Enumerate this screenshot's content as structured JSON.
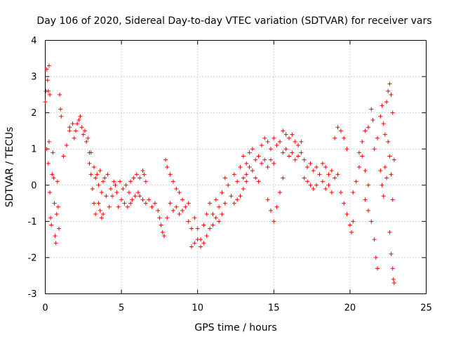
{
  "chart_data": {
    "type": "scatter",
    "title": "Day 106 of 2020, Sidereal Day-to-day VTEC variation (SDTVAR) for receiver vars",
    "xlabel": "GPS time / hours",
    "ylabel": "SDTVAR / TECUs",
    "xlim": [
      0,
      25
    ],
    "ylim": [
      -3,
      4
    ],
    "xticks": [
      "0",
      "5",
      "10",
      "15",
      "20",
      "25"
    ],
    "yticks": [
      "-3",
      "-2",
      "-1",
      "0",
      "1",
      "2",
      "3",
      "4"
    ],
    "grid": true,
    "marker": "+",
    "color": "#ff0000",
    "series": [
      {
        "name": "SDTVAR",
        "points": [
          [
            0.0,
            2.3
          ],
          [
            0.05,
            2.6
          ],
          [
            0.1,
            3.2
          ],
          [
            0.15,
            2.9
          ],
          [
            0.2,
            2.6
          ],
          [
            0.25,
            3.3
          ],
          [
            0.3,
            2.5
          ],
          [
            0.1,
            1.0
          ],
          [
            0.2,
            0.6
          ],
          [
            0.25,
            1.2
          ],
          [
            0.3,
            -0.2
          ],
          [
            0.35,
            -0.9
          ],
          [
            0.4,
            -1.1
          ],
          [
            0.45,
            0.3
          ],
          [
            0.5,
            0.9
          ],
          [
            0.55,
            0.2
          ],
          [
            0.6,
            -0.5
          ],
          [
            0.65,
            -1.4
          ],
          [
            0.7,
            -1.6
          ],
          [
            0.75,
            -0.8
          ],
          [
            0.8,
            0.1
          ],
          [
            0.85,
            -0.6
          ],
          [
            0.9,
            -1.2
          ],
          [
            0.95,
            2.5
          ],
          [
            1.0,
            2.1
          ],
          [
            1.05,
            1.9
          ],
          [
            1.2,
            0.8
          ],
          [
            1.4,
            1.1
          ],
          [
            1.6,
            1.5
          ],
          [
            1.8,
            1.7
          ],
          [
            2.0,
            1.5
          ],
          [
            2.2,
            1.8
          ],
          [
            2.3,
            1.9
          ],
          [
            2.4,
            1.6
          ],
          [
            2.6,
            1.5
          ],
          [
            2.7,
            1.2
          ],
          [
            1.6,
            1.6
          ],
          [
            1.9,
            1.3
          ],
          [
            2.1,
            1.7
          ],
          [
            2.5,
            1.4
          ],
          [
            2.8,
            1.3
          ],
          [
            2.9,
            0.9
          ],
          [
            2.9,
            0.6
          ],
          [
            3.0,
            0.3
          ],
          [
            3.1,
            -0.1
          ],
          [
            3.2,
            -0.5
          ],
          [
            3.3,
            -0.8
          ],
          [
            3.5,
            -0.5
          ],
          [
            3.6,
            -0.7
          ],
          [
            3.7,
            -0.9
          ],
          [
            3.8,
            -0.8
          ],
          [
            3.0,
            0.9
          ],
          [
            3.2,
            0.5
          ],
          [
            3.4,
            0.3
          ],
          [
            3.6,
            0.4
          ],
          [
            3.8,
            0.1
          ],
          [
            4.0,
            -0.3
          ],
          [
            4.2,
            -0.6
          ],
          [
            4.4,
            -0.3
          ],
          [
            4.6,
            0.0
          ],
          [
            3.3,
            0.2
          ],
          [
            3.5,
            0.0
          ],
          [
            3.7,
            -0.2
          ],
          [
            3.9,
            0.2
          ],
          [
            4.1,
            0.3
          ],
          [
            4.3,
            -0.1
          ],
          [
            4.5,
            0.1
          ],
          [
            4.7,
            -0.2
          ],
          [
            4.9,
            0.1
          ],
          [
            5.1,
            -0.1
          ],
          [
            5.3,
            0.0
          ],
          [
            5.5,
            -0.2
          ],
          [
            5.7,
            -0.4
          ],
          [
            5.9,
            -0.3
          ],
          [
            6.1,
            -0.2
          ],
          [
            4.8,
            -0.6
          ],
          [
            5.0,
            -0.4
          ],
          [
            5.2,
            -0.5
          ],
          [
            5.4,
            -0.6
          ],
          [
            5.6,
            -0.5
          ],
          [
            5.6,
            0.1
          ],
          [
            5.8,
            0.2
          ],
          [
            6.0,
            0.3
          ],
          [
            6.2,
            0.2
          ],
          [
            6.4,
            0.4
          ],
          [
            6.5,
            0.3
          ],
          [
            6.6,
            0.1
          ],
          [
            6.2,
            -0.3
          ],
          [
            6.4,
            -0.4
          ],
          [
            6.6,
            -0.5
          ],
          [
            6.8,
            -0.4
          ],
          [
            7.0,
            -0.6
          ],
          [
            7.2,
            -0.5
          ],
          [
            7.4,
            -0.7
          ],
          [
            7.5,
            -0.9
          ],
          [
            7.6,
            -1.1
          ],
          [
            7.7,
            -1.3
          ],
          [
            7.8,
            -1.4
          ],
          [
            8.0,
            -0.9
          ],
          [
            7.9,
            0.7
          ],
          [
            8.0,
            0.5
          ],
          [
            8.2,
            0.3
          ],
          [
            8.4,
            0.1
          ],
          [
            8.6,
            -0.1
          ],
          [
            8.8,
            -0.2
          ],
          [
            9.0,
            -0.4
          ],
          [
            8.2,
            -0.5
          ],
          [
            8.4,
            -0.7
          ],
          [
            8.6,
            -0.6
          ],
          [
            8.8,
            -0.8
          ],
          [
            9.0,
            -0.7
          ],
          [
            9.2,
            -0.6
          ],
          [
            9.4,
            -0.5
          ],
          [
            9.4,
            -1.0
          ],
          [
            9.6,
            -1.2
          ],
          [
            9.8,
            -0.9
          ],
          [
            10.0,
            -1.2
          ],
          [
            10.2,
            -1.5
          ],
          [
            10.4,
            -1.1
          ],
          [
            10.6,
            -0.8
          ],
          [
            9.6,
            -1.7
          ],
          [
            9.8,
            -1.6
          ],
          [
            10.0,
            -1.5
          ],
          [
            10.2,
            -1.7
          ],
          [
            10.4,
            -1.6
          ],
          [
            10.6,
            -1.4
          ],
          [
            10.8,
            -1.2
          ],
          [
            10.8,
            -0.5
          ],
          [
            11.0,
            -0.8
          ],
          [
            11.2,
            -0.4
          ],
          [
            11.4,
            -0.6
          ],
          [
            11.6,
            -0.2
          ],
          [
            11.8,
            -0.5
          ],
          [
            11.0,
            -1.1
          ],
          [
            11.2,
            -0.9
          ],
          [
            11.4,
            -1.0
          ],
          [
            11.6,
            -0.8
          ],
          [
            11.8,
            0.2
          ],
          [
            12.0,
            0.0
          ],
          [
            12.2,
            -0.3
          ],
          [
            12.4,
            0.3
          ],
          [
            12.6,
            0.1
          ],
          [
            12.8,
            0.5
          ],
          [
            13.0,
            0.2
          ],
          [
            12.4,
            -0.5
          ],
          [
            12.6,
            -0.4
          ],
          [
            12.8,
            -0.3
          ],
          [
            13.0,
            -0.1
          ],
          [
            13.2,
            0.1
          ],
          [
            13.0,
            0.8
          ],
          [
            13.2,
            0.6
          ],
          [
            13.4,
            0.9
          ],
          [
            13.6,
            1.0
          ],
          [
            13.8,
            0.7
          ],
          [
            14.0,
            0.8
          ],
          [
            13.2,
            0.3
          ],
          [
            13.4,
            0.5
          ],
          [
            13.6,
            0.4
          ],
          [
            13.8,
            0.2
          ],
          [
            14.0,
            0.1
          ],
          [
            14.2,
            1.1
          ],
          [
            14.4,
            1.3
          ],
          [
            14.6,
            1.2
          ],
          [
            14.8,
            1.0
          ],
          [
            15.0,
            1.3
          ],
          [
            15.2,
            1.1
          ],
          [
            15.4,
            1.2
          ],
          [
            14.2,
            0.6
          ],
          [
            14.4,
            0.7
          ],
          [
            14.6,
            0.5
          ],
          [
            14.8,
            0.7
          ],
          [
            15.0,
            0.6
          ],
          [
            14.6,
            -0.4
          ],
          [
            14.8,
            -0.7
          ],
          [
            15.0,
            -1.0
          ],
          [
            15.2,
            -0.6
          ],
          [
            15.4,
            -0.2
          ],
          [
            15.6,
            0.2
          ],
          [
            15.6,
            1.5
          ],
          [
            15.8,
            1.4
          ],
          [
            16.0,
            1.3
          ],
          [
            16.2,
            1.4
          ],
          [
            16.4,
            1.2
          ],
          [
            16.6,
            1.1
          ],
          [
            16.8,
            1.2
          ],
          [
            15.6,
            0.9
          ],
          [
            15.8,
            1.0
          ],
          [
            16.0,
            0.8
          ],
          [
            16.2,
            0.9
          ],
          [
            16.4,
            0.7
          ],
          [
            16.6,
            0.8
          ],
          [
            16.8,
            0.9
          ],
          [
            17.0,
            0.7
          ],
          [
            17.2,
            0.5
          ],
          [
            17.4,
            0.6
          ],
          [
            17.6,
            0.4
          ],
          [
            17.8,
            0.5
          ],
          [
            18.0,
            0.3
          ],
          [
            17.0,
            0.2
          ],
          [
            17.2,
            0.1
          ],
          [
            17.4,
            0.0
          ],
          [
            17.6,
            -0.1
          ],
          [
            17.8,
            0.0
          ],
          [
            18.2,
            0.6
          ],
          [
            18.4,
            0.5
          ],
          [
            18.6,
            0.3
          ],
          [
            18.8,
            0.4
          ],
          [
            19.0,
            0.2
          ],
          [
            19.2,
            0.3
          ],
          [
            18.2,
            0.1
          ],
          [
            18.4,
            -0.1
          ],
          [
            18.6,
            0.0
          ],
          [
            18.8,
            -0.2
          ],
          [
            19.0,
            1.3
          ],
          [
            19.2,
            1.6
          ],
          [
            19.4,
            1.5
          ],
          [
            19.6,
            1.3
          ],
          [
            19.8,
            1.0
          ],
          [
            19.4,
            -0.2
          ],
          [
            19.6,
            -0.5
          ],
          [
            19.8,
            -0.8
          ],
          [
            20.0,
            -1.1
          ],
          [
            20.1,
            -1.3
          ],
          [
            20.2,
            -1.0
          ],
          [
            20.2,
            -0.2
          ],
          [
            20.4,
            0.1
          ],
          [
            20.6,
            0.5
          ],
          [
            20.8,
            0.8
          ],
          [
            21.0,
            0.4
          ],
          [
            21.2,
            0.0
          ],
          [
            20.6,
            0.9
          ],
          [
            20.8,
            1.2
          ],
          [
            21.0,
            1.5
          ],
          [
            21.2,
            1.6
          ],
          [
            21.4,
            2.1
          ],
          [
            21.5,
            1.8
          ],
          [
            21.0,
            -0.4
          ],
          [
            21.2,
            -0.7
          ],
          [
            21.4,
            -1.0
          ],
          [
            21.6,
            -1.5
          ],
          [
            21.7,
            -2.0
          ],
          [
            21.8,
            -2.3
          ],
          [
            21.6,
            1.0
          ],
          [
            21.8,
            1.3
          ],
          [
            22.0,
            1.9
          ],
          [
            22.1,
            2.2
          ],
          [
            22.2,
            1.7
          ],
          [
            22.3,
            1.4
          ],
          [
            22.0,
            0.4
          ],
          [
            22.1,
            0.0
          ],
          [
            22.2,
            -0.3
          ],
          [
            22.3,
            0.5
          ],
          [
            22.4,
            0.2
          ],
          [
            22.4,
            2.3
          ],
          [
            22.5,
            2.6
          ],
          [
            22.6,
            2.8
          ],
          [
            22.7,
            2.5
          ],
          [
            22.8,
            2.0
          ],
          [
            22.5,
            1.2
          ],
          [
            22.6,
            0.8
          ],
          [
            22.7,
            0.3
          ],
          [
            22.8,
            -0.4
          ],
          [
            22.9,
            0.7
          ],
          [
            22.6,
            -1.3
          ],
          [
            22.7,
            -1.9
          ],
          [
            22.8,
            -2.3
          ],
          [
            22.85,
            -2.6
          ],
          [
            22.9,
            -2.7
          ]
        ]
      }
    ]
  }
}
